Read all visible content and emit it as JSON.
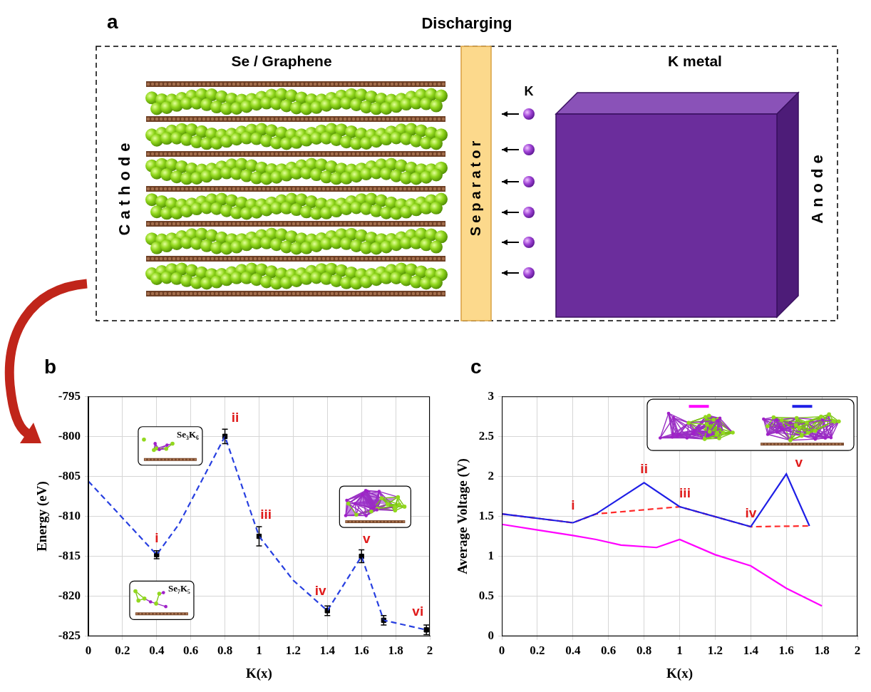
{
  "panel_a": {
    "label": "a",
    "title": "Discharging",
    "cathode": {
      "title": "Se / Graphene",
      "label": "Cathode"
    },
    "separator": {
      "label": "Separator"
    },
    "ion": {
      "label": "K"
    },
    "anode": {
      "title": "K metal",
      "label": "Anode"
    }
  },
  "chart_data": [
    {
      "label": "b",
      "type": "line",
      "x_label": "K(x)",
      "y_label": "Energy (eV)",
      "xlim": [
        0,
        2
      ],
      "xticks": [
        0,
        0.2,
        0.4,
        0.6,
        0.8,
        1,
        1.2,
        1.4,
        1.6,
        1.8,
        2
      ],
      "ylim": [
        -825,
        -795
      ],
      "yticks": [
        -825,
        -820,
        -815,
        -810,
        -805,
        -800,
        -795
      ],
      "grid": true,
      "series": [
        {
          "x": [
            0,
            0.4,
            0.53,
            0.8,
            1,
            1.2,
            1.4,
            1.6,
            1.73,
            1.98
          ],
          "values": [
            -805.6,
            -814.8,
            -811,
            -800,
            -812.5,
            -818,
            -821.8,
            -815,
            -823,
            -824.2
          ],
          "color": "#2840e0",
          "line_style": "dashed",
          "marker": "none"
        },
        {
          "x": [
            0.4,
            0.8,
            1,
            1.4,
            1.6,
            1.73,
            1.98
          ],
          "values": [
            -814.8,
            -800,
            -812.5,
            -821.8,
            -815,
            -823,
            -824.2
          ],
          "errors": [
            0.5,
            0.9,
            1.2,
            0.6,
            0.8,
            0.6,
            0.6
          ],
          "color": "#000000",
          "line_style": "none",
          "marker": "square"
        }
      ],
      "annotations": [
        {
          "text": "i",
          "x": 0.4,
          "y": -813.6,
          "color": "#e01b1b"
        },
        {
          "text": "ii",
          "x": 0.86,
          "y": -798.6,
          "color": "#e01b1b"
        },
        {
          "text": "iii",
          "x": 1.04,
          "y": -810.7,
          "color": "#e01b1b"
        },
        {
          "text": "iv",
          "x": 1.36,
          "y": -820.2,
          "color": "#e01b1b"
        },
        {
          "text": "v",
          "x": 1.63,
          "y": -813.7,
          "color": "#e01b1b"
        },
        {
          "text": "vi",
          "x": 1.93,
          "y": -822.8,
          "color": "#e01b1b"
        }
      ],
      "insets": [
        {
          "text": "Se₃K₆",
          "x": 0.48,
          "y": -801.2
        },
        {
          "text": "Se₇K₅",
          "x": 0.43,
          "y": -820.5
        },
        {
          "x": 1.68,
          "y": -808.8
        }
      ]
    },
    {
      "label": "c",
      "type": "line",
      "x_label": "K(x)",
      "y_label": "Average Voltage (V)",
      "xlim": [
        0,
        2
      ],
      "xticks": [
        0,
        0.2,
        0.4,
        0.6,
        0.8,
        1,
        1.2,
        1.4,
        1.6,
        1.8,
        2
      ],
      "ylim": [
        0,
        3
      ],
      "yticks": [
        0,
        0.5,
        1,
        1.5,
        2,
        2.5,
        3
      ],
      "grid": true,
      "legend": "upper right",
      "series": [
        {
          "x": [
            0,
            0.2,
            0.4,
            0.53,
            0.67,
            0.87,
            1,
            1.2,
            1.4,
            1.6,
            1.8
          ],
          "values": [
            1.4,
            1.33,
            1.26,
            1.21,
            1.14,
            1.11,
            1.21,
            1.02,
            0.88,
            0.6,
            0.38
          ],
          "color": "#ff00ff",
          "line_style": "solid",
          "marker": "none"
        },
        {
          "x": [
            0,
            0.4,
            0.53,
            0.8,
            1,
            1.4,
            1.6,
            1.73
          ],
          "values": [
            1.53,
            1.42,
            1.53,
            1.92,
            1.62,
            1.37,
            2.03,
            1.38
          ],
          "color": "#1f1fe6",
          "line_style": "solid",
          "marker": "none"
        },
        {
          "x": [
            0,
            0.4,
            0.53,
            1,
            1.4,
            1.73
          ],
          "values": [
            1.53,
            1.42,
            1.53,
            1.62,
            1.37,
            1.38
          ],
          "color": "#ff2a2a",
          "line_style": "dashed",
          "marker": "none"
        }
      ],
      "annotations": [
        {
          "text": "i",
          "x": 0.4,
          "y": 1.55,
          "color": "#e01b1b"
        },
        {
          "text": "ii",
          "x": 0.8,
          "y": 2.0,
          "color": "#e01b1b"
        },
        {
          "text": "iii",
          "x": 1.03,
          "y": 1.7,
          "color": "#e01b1b"
        },
        {
          "text": "iv",
          "x": 1.4,
          "y": 1.45,
          "color": "#e01b1b"
        },
        {
          "text": "v",
          "x": 1.67,
          "y": 2.08,
          "color": "#e01b1b"
        }
      ]
    }
  ]
}
